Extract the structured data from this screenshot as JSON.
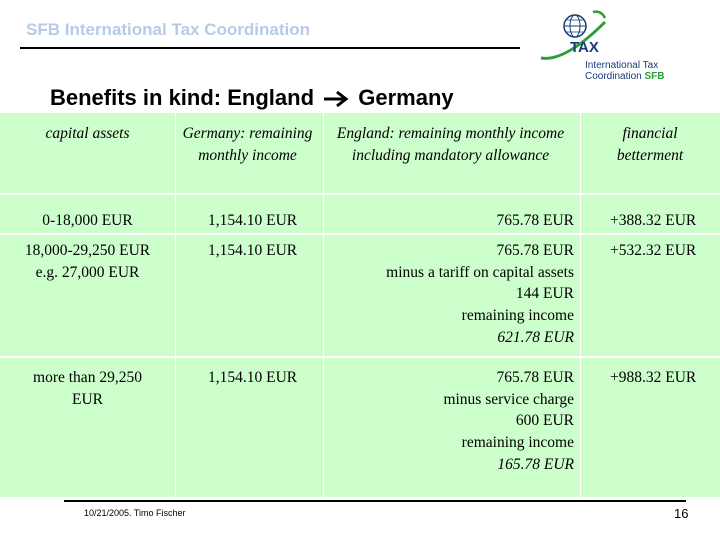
{
  "header": {
    "title": "SFB International Tax Coordination"
  },
  "logo": {
    "mark": "TAX",
    "line1": "International Tax",
    "line2": "Coordination",
    "sfb": "SFB"
  },
  "slide": {
    "title_left": "Benefits in kind: England",
    "title_right": "Germany",
    "arrow_icon": "right-arrow-icon"
  },
  "table": {
    "headers": [
      "capital assets",
      "Germany: remaining monthly income",
      "England: remaining monthly income including mandatory allowance",
      "financial betterment"
    ],
    "rows": [
      {
        "capital": [
          "0-18,000 EUR"
        ],
        "germany": "1,154.10 EUR",
        "england": [
          "765.78 EUR"
        ],
        "betterment": "+388.32 EUR"
      },
      {
        "capital": [
          "18,000-29,250 EUR",
          "e.g. 27,000 EUR"
        ],
        "germany": "1,154.10 EUR",
        "england": [
          "765.78 EUR",
          "minus a tariff on capital assets",
          "144 EUR",
          "remaining income",
          "621.78 EUR"
        ],
        "betterment": "+532.32 EUR"
      },
      {
        "capital": [
          "more than 29,250",
          "EUR"
        ],
        "germany": "1,154.10 EUR",
        "england": [
          "765.78 EUR",
          "minus service charge",
          "600 EUR",
          "remaining income",
          "165.78 EUR"
        ],
        "betterment": "+988.32 EUR"
      }
    ]
  },
  "footer": {
    "date_author": "10/21/2005. Timo Fischer",
    "page_number": "16"
  },
  "colors": {
    "table_bg": "#ccffcc",
    "header_title": "#b6cbe6",
    "logo_blue": "#1a3a7a",
    "logo_green": "#2e9e3a"
  }
}
